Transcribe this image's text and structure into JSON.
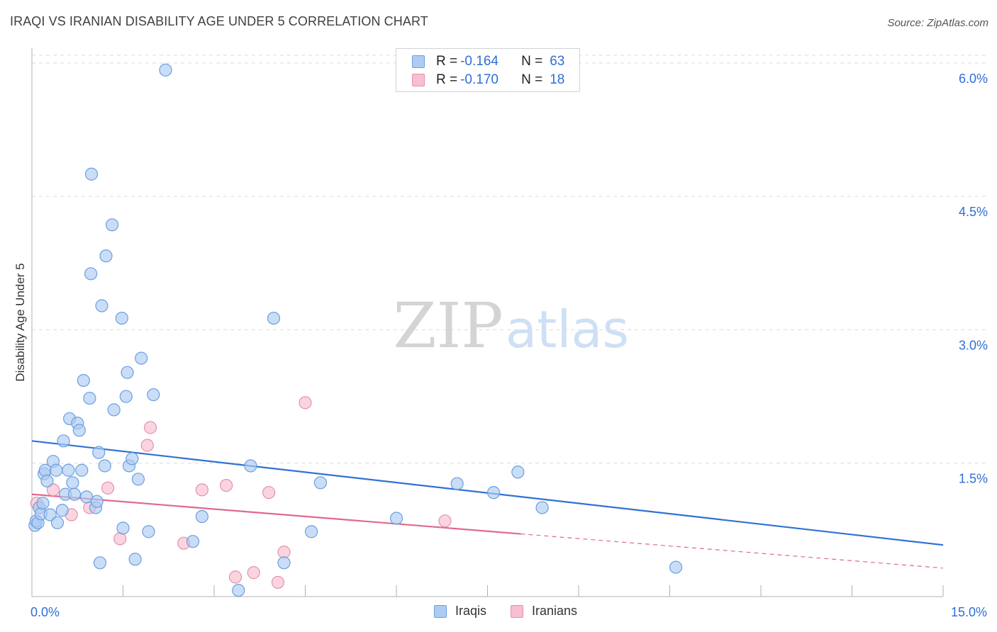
{
  "title": "IRAQI VS IRANIAN DISABILITY AGE UNDER 5 CORRELATION CHART",
  "source": "Source: ZipAtlas.com",
  "watermark": {
    "zip": "ZIP",
    "atlas": "atlas"
  },
  "colors": {
    "iraqis_fill": "#aecbf2",
    "iraqis_stroke": "#6a9fe0",
    "iraqis_line": "#2e72d2",
    "iranians_fill": "#f7bfd0",
    "iranians_stroke": "#e890ac",
    "iranians_line": "#e0688f",
    "tick_label": "#2f6fd6",
    "grid": "#dcdcdc"
  },
  "legend": {
    "rows": [
      {
        "r_label": "R = ",
        "r_value": "-0.164",
        "n_label": "N = ",
        "n_value": "63"
      },
      {
        "r_label": "R = ",
        "r_value": "-0.170",
        "n_label": "N = ",
        "n_value": "18"
      }
    ]
  },
  "bottom_legend": [
    "Iraqis",
    "Iranians"
  ],
  "chart_data": {
    "type": "scatter",
    "title": "IRAQI VS IRANIAN DISABILITY AGE UNDER 5 CORRELATION CHART",
    "xlabel": "",
    "ylabel": "Disability Age Under 5",
    "xlim": [
      0,
      15
    ],
    "ylim": [
      0,
      6.15
    ],
    "x_tick_labels": [
      {
        "value": 0,
        "label": "0.0%"
      },
      {
        "value": 15,
        "label": "15.0%"
      }
    ],
    "y_ticks": [
      {
        "value": 1.5,
        "label": "1.5%"
      },
      {
        "value": 3.0,
        "label": "3.0%"
      },
      {
        "value": 4.5,
        "label": "4.5%"
      },
      {
        "value": 6.0,
        "label": "6.0%"
      }
    ],
    "x_minor_ticks": [
      1.5,
      3.0,
      4.5,
      6.0,
      7.5,
      9.0,
      10.5,
      12.0,
      13.5,
      15.0
    ],
    "series": [
      {
        "name": "Iraqis",
        "R": -0.164,
        "N": 63,
        "trend": {
          "x0": 0,
          "y0": 1.75,
          "x1": 15,
          "y1": 0.58,
          "solid_until": 15
        },
        "points": [
          [
            0.05,
            0.8
          ],
          [
            0.07,
            0.85
          ],
          [
            0.1,
            0.83
          ],
          [
            0.12,
            1.0
          ],
          [
            0.15,
            0.93
          ],
          [
            0.18,
            1.05
          ],
          [
            0.2,
            1.38
          ],
          [
            0.22,
            1.42
          ],
          [
            0.25,
            1.3
          ],
          [
            0.3,
            0.92
          ],
          [
            0.35,
            1.52
          ],
          [
            0.4,
            1.42
          ],
          [
            0.42,
            0.83
          ],
          [
            0.5,
            0.97
          ],
          [
            0.52,
            1.75
          ],
          [
            0.55,
            1.15
          ],
          [
            0.6,
            1.42
          ],
          [
            0.62,
            2.0
          ],
          [
            0.67,
            1.28
          ],
          [
            0.7,
            1.15
          ],
          [
            0.75,
            1.95
          ],
          [
            0.78,
            1.87
          ],
          [
            0.82,
            1.42
          ],
          [
            0.85,
            2.43
          ],
          [
            0.9,
            1.12
          ],
          [
            0.95,
            2.23
          ],
          [
            0.97,
            3.63
          ],
          [
            0.98,
            4.75
          ],
          [
            1.05,
            1.0
          ],
          [
            1.07,
            1.07
          ],
          [
            1.1,
            1.62
          ],
          [
            1.12,
            0.38
          ],
          [
            1.15,
            3.27
          ],
          [
            1.2,
            1.47
          ],
          [
            1.22,
            3.83
          ],
          [
            1.32,
            4.18
          ],
          [
            1.35,
            2.1
          ],
          [
            1.48,
            3.13
          ],
          [
            1.5,
            0.77
          ],
          [
            1.55,
            2.25
          ],
          [
            1.57,
            2.52
          ],
          [
            1.6,
            1.47
          ],
          [
            1.65,
            1.55
          ],
          [
            1.7,
            0.42
          ],
          [
            1.75,
            1.32
          ],
          [
            1.8,
            2.68
          ],
          [
            1.92,
            0.73
          ],
          [
            2.0,
            2.27
          ],
          [
            2.2,
            5.92
          ],
          [
            2.65,
            0.62
          ],
          [
            2.8,
            0.9
          ],
          [
            3.4,
            0.07
          ],
          [
            3.6,
            1.47
          ],
          [
            3.98,
            3.13
          ],
          [
            4.15,
            0.38
          ],
          [
            4.6,
            0.73
          ],
          [
            4.75,
            1.28
          ],
          [
            6.0,
            0.88
          ],
          [
            7.0,
            1.27
          ],
          [
            7.6,
            1.17
          ],
          [
            8.0,
            1.4
          ],
          [
            8.4,
            1.0
          ],
          [
            10.6,
            0.33
          ]
        ]
      },
      {
        "name": "Iranians",
        "R": -0.17,
        "N": 18,
        "trend": {
          "x0": 0,
          "y0": 1.15,
          "x1": 15,
          "y1": 0.32,
          "solid_until": 8.05
        },
        "points": [
          [
            0.08,
            1.05
          ],
          [
            0.35,
            1.2
          ],
          [
            0.65,
            0.92
          ],
          [
            0.95,
            1.0
          ],
          [
            1.25,
            1.22
          ],
          [
            1.45,
            0.65
          ],
          [
            1.95,
            1.9
          ],
          [
            1.9,
            1.7
          ],
          [
            2.5,
            0.6
          ],
          [
            2.8,
            1.2
          ],
          [
            3.2,
            1.25
          ],
          [
            3.35,
            0.22
          ],
          [
            3.65,
            0.27
          ],
          [
            3.9,
            1.17
          ],
          [
            4.05,
            0.16
          ],
          [
            4.15,
            0.5
          ],
          [
            4.5,
            2.18
          ],
          [
            6.8,
            0.85
          ]
        ]
      }
    ]
  }
}
